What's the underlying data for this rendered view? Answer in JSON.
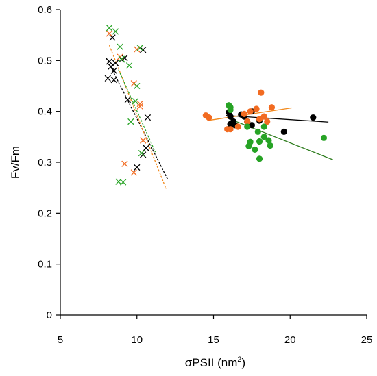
{
  "chart_data": {
    "type": "scatter",
    "title": "",
    "xlabel": "σPSII (nm2)",
    "xlabel_main": "σPSII (nm",
    "xlabel_sup": "2",
    "xlabel_close": ")",
    "ylabel": "Fv/Fm",
    "xlim": [
      5,
      25
    ],
    "ylim": [
      0,
      0.6
    ],
    "xticks": [
      5,
      10,
      15,
      20,
      25
    ],
    "xtick_labels": [
      "5",
      "10",
      "15",
      "20",
      "25"
    ],
    "yticks": [
      0,
      0.1,
      0.2,
      0.3,
      0.4,
      0.5,
      0.6
    ],
    "ytick_labels": [
      "0",
      "0.1",
      "0.2",
      "0.3",
      "0.4",
      "0.5",
      "0.6"
    ],
    "grid": false,
    "legend": "none",
    "series": [
      {
        "marker": "x",
        "color": "#000000",
        "points": [
          [
            8.4,
            0.545
          ],
          [
            8.2,
            0.498
          ],
          [
            8.6,
            0.495
          ],
          [
            8.3,
            0.488
          ],
          [
            8.5,
            0.48
          ],
          [
            8.1,
            0.465
          ],
          [
            8.5,
            0.462
          ],
          [
            9.2,
            0.505
          ],
          [
            9.0,
            0.502
          ],
          [
            10.4,
            0.521
          ],
          [
            9.4,
            0.423
          ],
          [
            10.7,
            0.388
          ],
          [
            10.6,
            0.328
          ],
          [
            10.4,
            0.315
          ],
          [
            10.0,
            0.29
          ]
        ]
      },
      {
        "marker": "x",
        "color": "#f26b21",
        "points": [
          [
            8.2,
            0.553
          ],
          [
            8.9,
            0.507
          ],
          [
            10.0,
            0.522
          ],
          [
            9.8,
            0.455
          ],
          [
            10.2,
            0.415
          ],
          [
            10.2,
            0.41
          ],
          [
            10.4,
            0.343
          ],
          [
            9.2,
            0.297
          ],
          [
            9.8,
            0.28
          ]
        ]
      },
      {
        "marker": "x",
        "color": "#27a325",
        "points": [
          [
            8.2,
            0.564
          ],
          [
            8.6,
            0.557
          ],
          [
            8.9,
            0.527
          ],
          [
            9.0,
            0.503
          ],
          [
            9.5,
            0.49
          ],
          [
            10.0,
            0.45
          ],
          [
            10.2,
            0.525
          ],
          [
            9.9,
            0.42
          ],
          [
            9.6,
            0.38
          ],
          [
            10.3,
            0.318
          ],
          [
            8.8,
            0.262
          ],
          [
            9.1,
            0.261
          ]
        ]
      },
      {
        "marker": "circle",
        "color": "#000000",
        "points": [
          [
            16.0,
            0.398
          ],
          [
            16.1,
            0.39
          ],
          [
            16.3,
            0.38
          ],
          [
            16.1,
            0.375
          ],
          [
            16.4,
            0.373
          ],
          [
            16.8,
            0.394
          ],
          [
            17.0,
            0.39
          ],
          [
            17.2,
            0.38
          ],
          [
            17.5,
            0.4
          ],
          [
            17.5,
            0.373
          ],
          [
            18.0,
            0.382
          ],
          [
            19.6,
            0.36
          ],
          [
            21.5,
            0.388
          ]
        ]
      },
      {
        "marker": "circle",
        "color": "#f26b21",
        "points": [
          [
            14.5,
            0.392
          ],
          [
            14.7,
            0.388
          ],
          [
            15.9,
            0.365
          ],
          [
            16.1,
            0.365
          ],
          [
            16.6,
            0.37
          ],
          [
            17.0,
            0.395
          ],
          [
            17.4,
            0.4
          ],
          [
            17.8,
            0.405
          ],
          [
            18.0,
            0.385
          ],
          [
            18.1,
            0.437
          ],
          [
            18.3,
            0.39
          ],
          [
            18.5,
            0.38
          ],
          [
            18.8,
            0.408
          ],
          [
            17.2,
            0.38
          ]
        ]
      },
      {
        "marker": "circle",
        "color": "#27a325",
        "points": [
          [
            16.0,
            0.412
          ],
          [
            16.1,
            0.408
          ],
          [
            16.1,
            0.403
          ],
          [
            17.2,
            0.37
          ],
          [
            17.3,
            0.332
          ],
          [
            17.4,
            0.34
          ],
          [
            17.7,
            0.325
          ],
          [
            17.9,
            0.36
          ],
          [
            18.0,
            0.341
          ],
          [
            18.0,
            0.307
          ],
          [
            18.3,
            0.35
          ],
          [
            18.6,
            0.343
          ],
          [
            18.7,
            0.333
          ],
          [
            22.2,
            0.348
          ],
          [
            18.3,
            0.37
          ]
        ]
      }
    ],
    "trendlines": [
      {
        "style": "dashed",
        "color": "#000000",
        "from": [
          8.0,
          0.505
        ],
        "to": [
          12.0,
          0.267
        ]
      },
      {
        "style": "dashed",
        "color": "#f28a1e",
        "from": [
          8.2,
          0.53
        ],
        "to": [
          11.9,
          0.248
        ]
      },
      {
        "style": "dashed",
        "color": "#27a325",
        "from": [
          8.8,
          0.482
        ],
        "to": [
          11.2,
          0.32
        ]
      },
      {
        "style": "solid",
        "color": "#000000",
        "from": [
          15.8,
          0.392
        ],
        "to": [
          22.5,
          0.379
        ]
      },
      {
        "style": "solid",
        "color": "#f28a1e",
        "from": [
          14.6,
          0.382
        ],
        "to": [
          20.1,
          0.407
        ]
      },
      {
        "style": "solid",
        "color": "#2f7d1f",
        "from": [
          15.9,
          0.387
        ],
        "to": [
          22.8,
          0.305
        ]
      }
    ]
  }
}
